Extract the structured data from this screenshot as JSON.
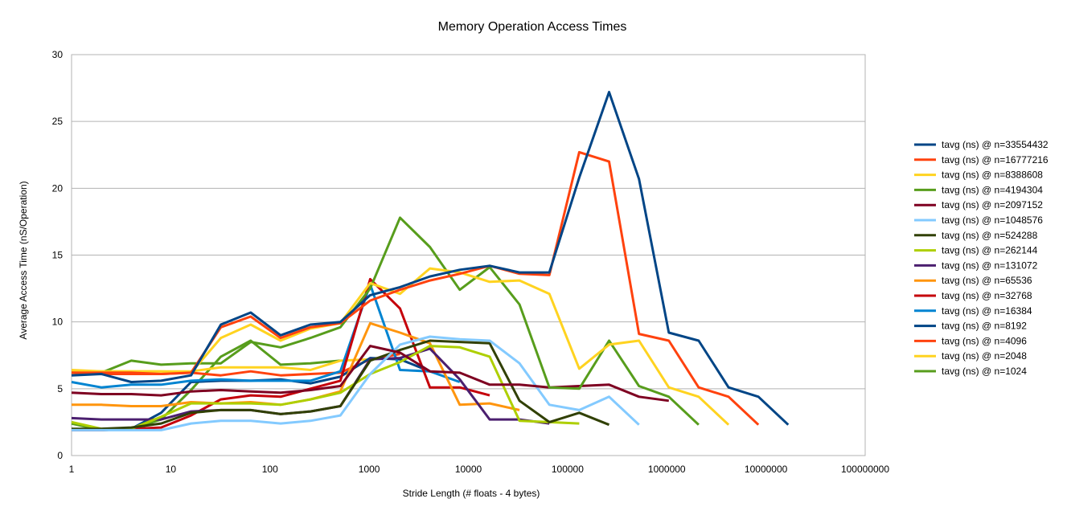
{
  "chart_data": {
    "type": "line",
    "title": "Memory Operation Access Times",
    "xlabel": "Stride Length (# floats - 4 bytes)",
    "ylabel": "Average Access Time  (nS/Operation)",
    "x_scale": "log",
    "xlim": [
      1,
      100000000
    ],
    "ylim": [
      0,
      30
    ],
    "x_ticks": [
      "1",
      "10",
      "100",
      "1000",
      "10000",
      "100000",
      "1000000",
      "10000000",
      "100000000"
    ],
    "y_ticks": [
      "0",
      "5",
      "10",
      "15",
      "20",
      "25",
      "30"
    ],
    "grid": "horizontal",
    "legend_position": "right",
    "series": [
      {
        "name": "tavg (ns) @ n=33554432",
        "color": "#004586",
        "x": [
          1,
          2,
          4,
          8,
          16,
          32,
          64,
          128,
          256,
          512,
          1024,
          2048,
          4096,
          8192,
          16384,
          32768,
          65536,
          131072,
          262144,
          524288,
          1048576,
          2097152,
          4194304,
          8388608,
          16777216
        ],
        "y": [
          6.0,
          6.1,
          5.5,
          5.6,
          6.0,
          9.8,
          10.7,
          9.0,
          9.8,
          10.0,
          12.0,
          12.6,
          13.4,
          13.9,
          14.2,
          13.7,
          13.7,
          20.8,
          27.2,
          20.7,
          9.2,
          8.6,
          5.1,
          4.4,
          2.3
        ]
      },
      {
        "name": "tavg (ns) @ n=16777216",
        "color": "#ff420e",
        "x": [
          1,
          2,
          4,
          8,
          16,
          32,
          64,
          128,
          256,
          512,
          1024,
          2048,
          4096,
          8192,
          16384,
          32768,
          65536,
          131072,
          262144,
          524288,
          1048576,
          2097152,
          4194304,
          8388608
        ],
        "y": [
          6.2,
          6.2,
          6.2,
          6.1,
          6.2,
          9.6,
          10.4,
          8.8,
          9.6,
          9.9,
          11.6,
          12.4,
          13.1,
          13.6,
          14.2,
          13.6,
          13.5,
          22.7,
          22.0,
          9.1,
          8.6,
          5.1,
          4.4,
          2.3
        ]
      },
      {
        "name": "tavg (ns) @ n=8388608",
        "color": "#ffd320",
        "x": [
          1,
          2,
          4,
          8,
          16,
          32,
          64,
          128,
          256,
          512,
          1024,
          2048,
          4096,
          8192,
          16384,
          32768,
          65536,
          131072,
          262144,
          524288,
          1048576,
          2097152,
          4194304
        ],
        "y": [
          6.4,
          6.3,
          6.3,
          6.3,
          6.2,
          8.8,
          9.8,
          8.6,
          9.5,
          9.9,
          12.9,
          12.1,
          14.0,
          13.7,
          13.0,
          13.1,
          12.1,
          6.5,
          8.3,
          8.6,
          5.1,
          4.4,
          2.3
        ]
      },
      {
        "name": "tavg (ns) @ n=4194304",
        "color": "#579d1c",
        "x": [
          1,
          2,
          4,
          8,
          16,
          32,
          64,
          128,
          256,
          512,
          1024,
          2048,
          4096,
          8192,
          16384,
          32768,
          65536,
          131072,
          262144,
          524288,
          1048576,
          2097152
        ],
        "y": [
          6.2,
          6.2,
          7.1,
          6.8,
          6.9,
          6.9,
          8.5,
          8.1,
          8.8,
          9.6,
          12.5,
          17.8,
          15.6,
          12.4,
          14.1,
          11.3,
          5.1,
          5.0,
          8.6,
          5.2,
          4.4,
          2.3
        ]
      },
      {
        "name": "tavg (ns) @ n=2097152",
        "color": "#7e0021",
        "x": [
          1,
          2,
          4,
          8,
          16,
          32,
          64,
          128,
          256,
          512,
          1024,
          2048,
          4096,
          8192,
          16384,
          32768,
          65536,
          131072,
          262144,
          524288,
          1048576
        ],
        "y": [
          4.7,
          4.6,
          4.6,
          4.5,
          4.8,
          4.9,
          4.8,
          4.7,
          4.9,
          5.2,
          8.2,
          7.7,
          6.3,
          6.2,
          5.3,
          5.3,
          5.1,
          5.2,
          5.3,
          4.4,
          4.1
        ]
      },
      {
        "name": "tavg (ns) @ n=1048576",
        "color": "#83caff",
        "x": [
          1,
          2,
          4,
          8,
          16,
          32,
          64,
          128,
          256,
          512,
          1024,
          2048,
          4096,
          8192,
          16384,
          32768,
          65536,
          131072,
          262144,
          524288
        ],
        "y": [
          1.9,
          1.9,
          1.9,
          1.9,
          2.4,
          2.6,
          2.6,
          2.4,
          2.6,
          3.0,
          6.1,
          8.3,
          8.9,
          8.7,
          8.6,
          6.9,
          3.8,
          3.4,
          4.4,
          2.3
        ]
      },
      {
        "name": "tavg (ns) @ n=524288",
        "color": "#314004",
        "x": [
          1,
          2,
          4,
          8,
          16,
          32,
          64,
          128,
          256,
          512,
          1024,
          2048,
          4096,
          8192,
          16384,
          32768,
          65536,
          131072,
          262144
        ],
        "y": [
          2.0,
          2.0,
          2.1,
          2.4,
          3.2,
          3.4,
          3.4,
          3.1,
          3.3,
          3.7,
          7.1,
          7.9,
          8.6,
          8.5,
          8.4,
          4.1,
          2.5,
          3.2,
          2.3
        ]
      },
      {
        "name": "tavg (ns) @ n=262144",
        "color": "#aecf00",
        "x": [
          1,
          2,
          4,
          8,
          16,
          32,
          64,
          128,
          256,
          512,
          1024,
          2048,
          4096,
          8192,
          16384,
          32768,
          65536,
          131072
        ],
        "y": [
          2.5,
          2.0,
          2.0,
          2.9,
          3.9,
          3.9,
          3.9,
          3.8,
          4.2,
          4.7,
          6.1,
          7.0,
          8.2,
          8.1,
          7.4,
          2.6,
          2.5,
          2.4
        ]
      },
      {
        "name": "tavg (ns) @ n=131072",
        "color": "#4b1f6f",
        "x": [
          1,
          2,
          4,
          8,
          16,
          32,
          64,
          128,
          256,
          512,
          1024,
          2048,
          4096,
          8192,
          16384,
          32768,
          65536
        ],
        "y": [
          2.8,
          2.7,
          2.7,
          2.7,
          3.3,
          3.4,
          3.4,
          3.1,
          3.3,
          3.7,
          7.2,
          7.3,
          8.0,
          5.7,
          2.7,
          2.7,
          2.4
        ]
      },
      {
        "name": "tavg (ns) @ n=65536",
        "color": "#ff950e",
        "x": [
          1,
          2,
          4,
          8,
          16,
          32,
          64,
          128,
          256,
          512,
          1024,
          2048,
          4096,
          8192,
          16384,
          32768
        ],
        "y": [
          3.8,
          3.8,
          3.7,
          3.7,
          4.0,
          3.9,
          4.0,
          3.8,
          4.2,
          4.8,
          9.9,
          9.2,
          8.4,
          3.8,
          3.9,
          3.4
        ]
      },
      {
        "name": "tavg (ns) @ n=32768",
        "color": "#c5000b",
        "x": [
          1,
          2,
          4,
          8,
          16,
          32,
          64,
          128,
          256,
          512,
          1024,
          2048,
          4096,
          8192,
          16384
        ],
        "y": [
          1.9,
          1.9,
          2.0,
          2.1,
          3.0,
          4.2,
          4.5,
          4.4,
          5.0,
          5.6,
          13.2,
          11.0,
          5.1,
          5.1,
          4.5
        ]
      },
      {
        "name": "tavg (ns) @ n=16384",
        "color": "#0084d1",
        "x": [
          1,
          2,
          4,
          8,
          16,
          32,
          64,
          128,
          256,
          512,
          1024,
          2048,
          4096,
          8192
        ],
        "y": [
          5.5,
          5.1,
          5.3,
          5.3,
          5.6,
          5.7,
          5.6,
          5.6,
          5.6,
          6.3,
          12.8,
          6.4,
          6.3,
          5.5
        ]
      },
      {
        "name": "tavg (ns) @ n=8192",
        "color": "#004586",
        "x": [
          1,
          2,
          4,
          8,
          16,
          32,
          64,
          128,
          256,
          512,
          1024,
          2048,
          4096
        ],
        "y": [
          1.9,
          1.9,
          2.0,
          3.2,
          5.5,
          5.6,
          5.6,
          5.7,
          5.4,
          5.9,
          7.3,
          7.2,
          6.3
        ]
      },
      {
        "name": "tavg (ns) @ n=4096",
        "color": "#ff420e",
        "x": [
          1,
          2,
          4,
          8,
          16,
          32,
          64,
          128,
          256,
          512,
          1024,
          2048
        ],
        "y": [
          6.2,
          6.1,
          6.1,
          6.1,
          6.2,
          6.0,
          6.3,
          6.0,
          6.1,
          6.2,
          7.2,
          7.6
        ]
      },
      {
        "name": "tavg (ns) @ n=2048",
        "color": "#ffd320",
        "x": [
          1,
          2,
          4,
          8,
          16,
          32,
          64,
          128,
          256,
          512,
          1024
        ],
        "y": [
          6.3,
          6.3,
          6.3,
          6.3,
          6.3,
          6.6,
          6.6,
          6.6,
          6.4,
          7.1,
          7.2
        ]
      },
      {
        "name": "tavg (ns) @ n=1024",
        "color": "#579d1c",
        "x": [
          1,
          2,
          4,
          8,
          16,
          32,
          64,
          128,
          256,
          512
        ],
        "y": [
          2.4,
          1.9,
          2.0,
          2.7,
          4.9,
          7.4,
          8.6,
          6.8,
          6.9,
          7.1
        ]
      }
    ]
  }
}
